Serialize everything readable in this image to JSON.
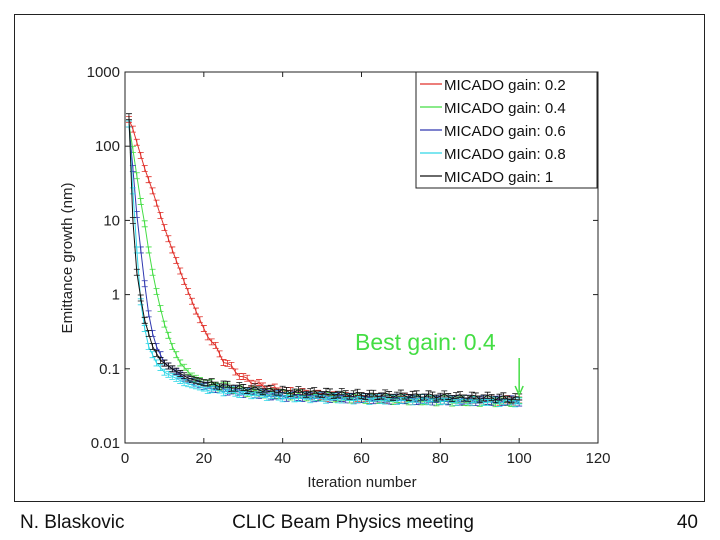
{
  "footer": {
    "author": "N. Blaskovic",
    "meeting": "CLIC Beam Physics meeting",
    "page": "40"
  },
  "chart_data": {
    "type": "line",
    "xlabel": "Iteration number",
    "ylabel": "Emittance growth (nm)",
    "xlim": [
      0,
      120
    ],
    "ylim": [
      0.01,
      1000
    ],
    "yscale": "log",
    "xticks": [
      "0",
      "20",
      "40",
      "60",
      "80",
      "100",
      "120"
    ],
    "yticks": [
      "0.01",
      "0.1",
      "1",
      "10",
      "100",
      "1000"
    ],
    "legend_position": "top-right",
    "error_bars": true,
    "annotation": {
      "prefix": "Best gain: ",
      "value": "0.4",
      "x": 100,
      "y": 0.04,
      "color": "#44dd44"
    },
    "series": [
      {
        "name": "MICADO gain: 0.2",
        "color": "#e0302a",
        "x": [
          1,
          2,
          5,
          7,
          10,
          12,
          15,
          18,
          20,
          25,
          30,
          35,
          40,
          50,
          60,
          80,
          100
        ],
        "y": [
          230,
          170,
          50,
          25,
          8,
          4,
          1.5,
          0.6,
          0.35,
          0.13,
          0.075,
          0.058,
          0.05,
          0.043,
          0.04,
          0.038,
          0.037
        ]
      },
      {
        "name": "MICADO gain: 0.4",
        "color": "#44dd44",
        "x": [
          1,
          2,
          3,
          4,
          5,
          6,
          7,
          8,
          9,
          10,
          12,
          14,
          17,
          20,
          30,
          40,
          60,
          80,
          100
        ],
        "y": [
          200,
          90,
          40,
          18,
          9,
          4,
          2,
          1.1,
          0.65,
          0.4,
          0.2,
          0.12,
          0.08,
          0.065,
          0.05,
          0.045,
          0.04,
          0.037,
          0.036
        ]
      },
      {
        "name": "MICADO gain: 0.6",
        "color": "#3038b0",
        "x": [
          1,
          2,
          3,
          4,
          5,
          6,
          7,
          8,
          10,
          15,
          20,
          30,
          40,
          60,
          80,
          100
        ],
        "y": [
          200,
          50,
          12,
          4,
          1.4,
          0.55,
          0.3,
          0.2,
          0.12,
          0.075,
          0.058,
          0.048,
          0.043,
          0.04,
          0.038,
          0.037
        ]
      },
      {
        "name": "MICADO gain: 0.8",
        "color": "#30d8e8",
        "x": [
          1,
          2,
          3,
          4,
          5,
          6,
          8,
          10,
          15,
          20,
          30,
          40,
          60,
          80,
          100
        ],
        "y": [
          200,
          25,
          4,
          0.8,
          0.35,
          0.2,
          0.12,
          0.09,
          0.065,
          0.055,
          0.047,
          0.042,
          0.039,
          0.038,
          0.036
        ]
      },
      {
        "name": "MICADO gain: 1",
        "color": "#111111",
        "x": [
          1,
          2,
          3,
          4,
          5,
          6,
          7,
          9,
          12,
          16,
          20,
          30,
          40,
          60,
          80,
          100
        ],
        "y": [
          250,
          10,
          2,
          0.9,
          0.45,
          0.3,
          0.2,
          0.13,
          0.1,
          0.075,
          0.065,
          0.055,
          0.05,
          0.045,
          0.043,
          0.04
        ]
      }
    ]
  }
}
